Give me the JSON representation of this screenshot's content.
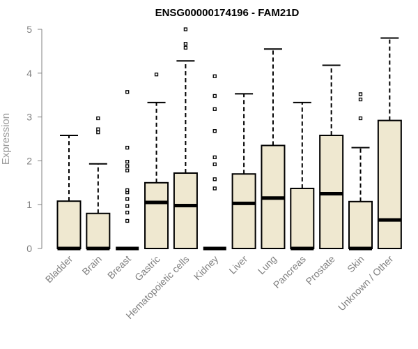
{
  "chart_data": {
    "type": "boxplot",
    "title": "ENSG00000174196 - FAM21D",
    "ylabel": "Expression",
    "xlabel": "",
    "ylim": [
      0,
      5
    ],
    "yticks": [
      0,
      1,
      2,
      3,
      4,
      5
    ],
    "grid": false,
    "legend": "none",
    "box_fill": "#efe8d0",
    "outline_color": "#000000",
    "label_color": "#808080",
    "categories": [
      "Bladder",
      "Brain",
      "Breast",
      "Gastric",
      "Hematopoietic cells",
      "Kidney",
      "Liver",
      "Lung",
      "Pancreas",
      "Prostate",
      "Skin",
      "Unknown / Other"
    ],
    "boxes": [
      {
        "q1": 0,
        "median": 0,
        "q3": 1.08,
        "whisker_low": 0,
        "whisker_high": 2.58,
        "outliers": []
      },
      {
        "q1": 0,
        "median": 0,
        "q3": 0.8,
        "whisker_low": 0,
        "whisker_high": 1.93,
        "outliers": [
          2.65,
          2.72,
          2.97
        ]
      },
      {
        "q1": 0,
        "median": 0,
        "q3": 0,
        "whisker_low": 0,
        "whisker_high": 0,
        "outliers": [
          0.63,
          0.82,
          0.97,
          1.13,
          1.28,
          1.33,
          1.78,
          1.88,
          1.98,
          2.3,
          3.57
        ]
      },
      {
        "q1": 0,
        "median": 1.05,
        "q3": 1.5,
        "whisker_low": 0,
        "whisker_high": 3.33,
        "outliers": [
          3.97
        ]
      },
      {
        "q1": 0,
        "median": 0.98,
        "q3": 1.72,
        "whisker_low": 0,
        "whisker_high": 4.28,
        "outliers": [
          4.58,
          4.67,
          5.0
        ]
      },
      {
        "q1": 0,
        "median": 0,
        "q3": 0,
        "whisker_low": 0,
        "whisker_high": 0,
        "outliers": [
          1.37,
          1.58,
          1.92,
          2.08,
          2.68,
          3.18,
          3.48,
          3.93
        ]
      },
      {
        "q1": 0,
        "median": 1.03,
        "q3": 1.7,
        "whisker_low": 0,
        "whisker_high": 3.53,
        "outliers": []
      },
      {
        "q1": 0,
        "median": 1.15,
        "q3": 2.35,
        "whisker_low": 0,
        "whisker_high": 4.55,
        "outliers": []
      },
      {
        "q1": 0,
        "median": 0,
        "q3": 1.37,
        "whisker_low": 0,
        "whisker_high": 3.33,
        "outliers": []
      },
      {
        "q1": 0,
        "median": 1.25,
        "q3": 2.58,
        "whisker_low": 0,
        "whisker_high": 4.18,
        "outliers": []
      },
      {
        "q1": 0,
        "median": 0,
        "q3": 1.07,
        "whisker_low": 0,
        "whisker_high": 2.3,
        "outliers": [
          2.97,
          3.4,
          3.52
        ]
      },
      {
        "q1": 0,
        "median": 0.65,
        "q3": 2.92,
        "whisker_low": 0,
        "whisker_high": 4.8,
        "outliers": []
      }
    ]
  }
}
